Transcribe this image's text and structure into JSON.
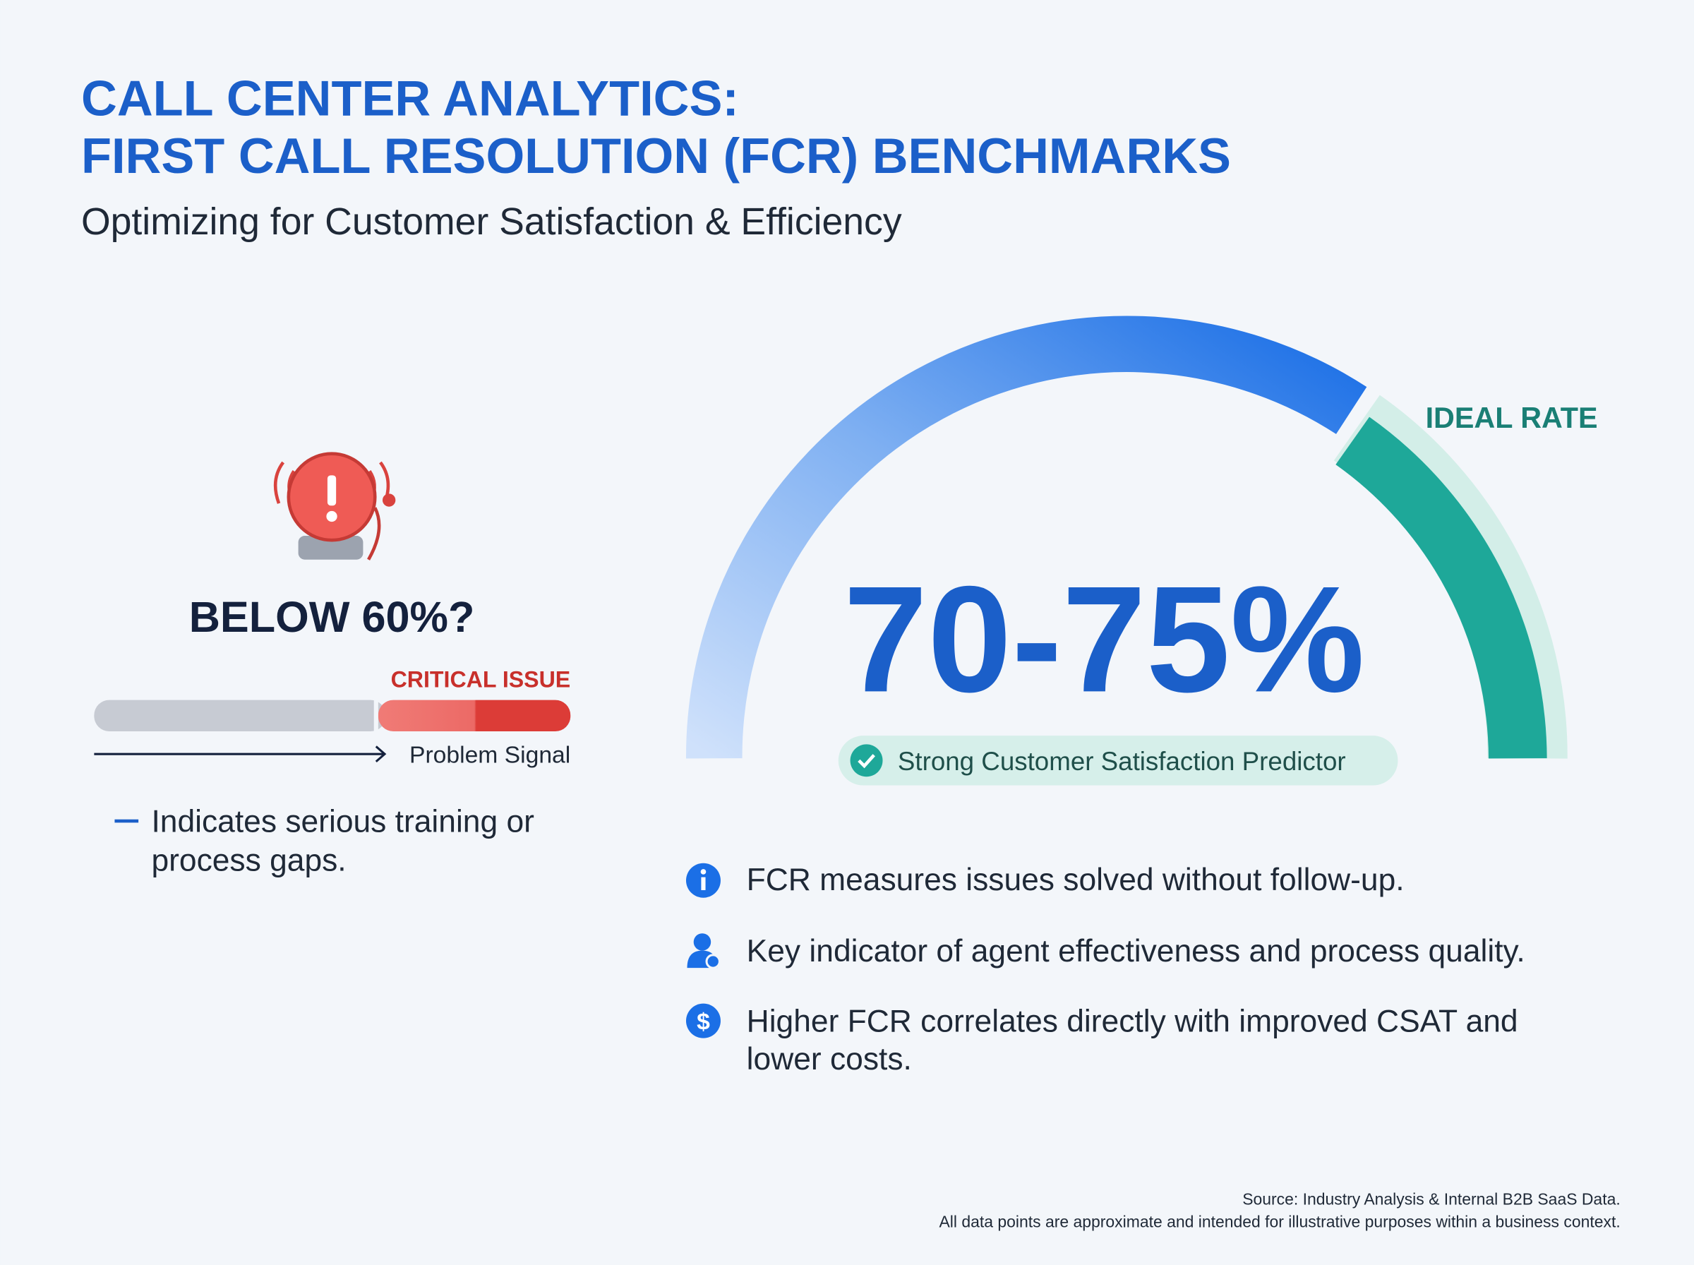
{
  "header": {
    "title_lines": [
      "CALL CENTER ANALYTICS:",
      "FIRST CALL RESOLUTION (FCR) BENCHMARKS"
    ],
    "subtitle": "Optimizing for Customer Satisfaction & Efficiency"
  },
  "warning": {
    "heading": "BELOW 60%?",
    "bar_label": "CRITICAL ISSUE",
    "arrow_label": "Problem Signal",
    "note_lines": [
      "Indicates serious training or",
      "process gaps."
    ]
  },
  "gauge": {
    "zone_label": "IDEAL RATE",
    "headline": "70-75%",
    "badge": "Strong Customer Satisfaction Predictor"
  },
  "points": [
    {
      "lines": [
        "FCR measures issues solved without follow-up."
      ]
    },
    {
      "lines": [
        "Key indicator of agent effectiveness and process quality."
      ]
    },
    {
      "lines": [
        "Higher FCR correlates directly with improved CSAT and",
        "lower costs."
      ]
    }
  ],
  "footer": {
    "lines": [
      "Source: Industry Analysis & Internal B2B SaaS Data.",
      "All data points are approximate and intended for illustrative purposes within a business context."
    ]
  }
}
